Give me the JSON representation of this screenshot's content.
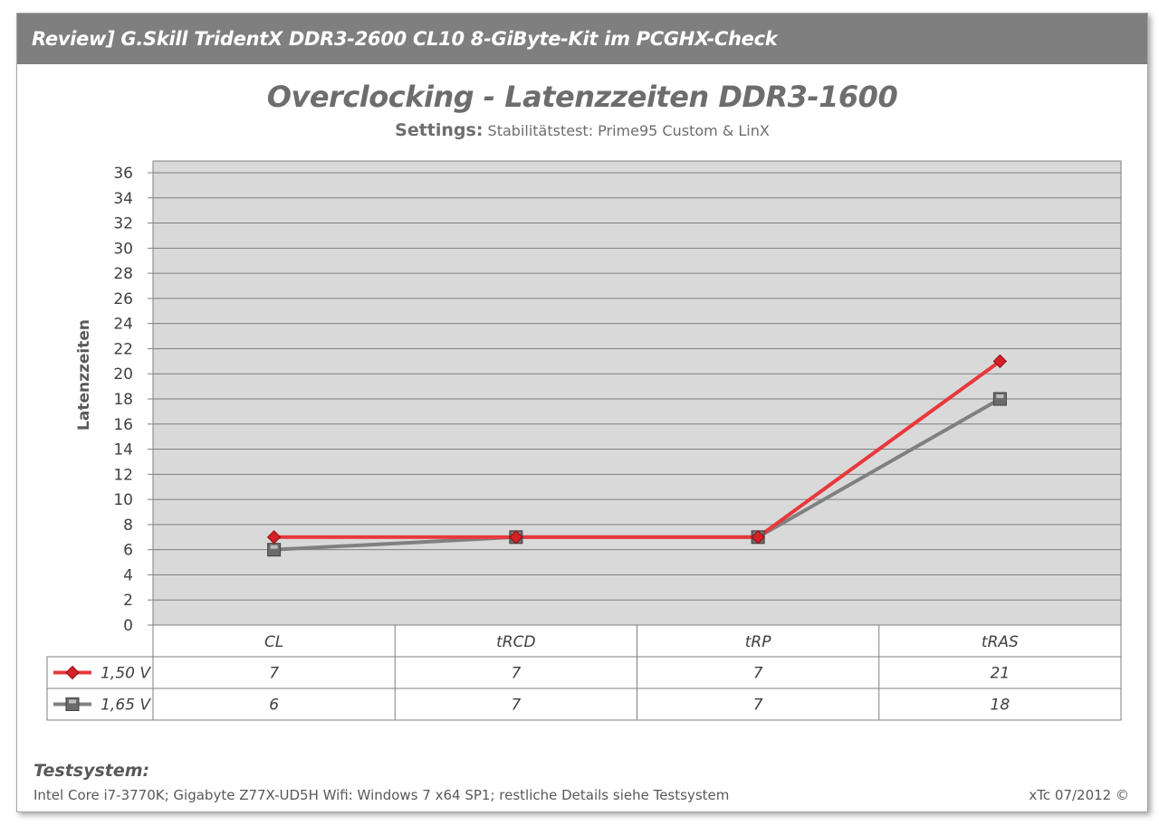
{
  "window": {
    "title": "Review] G.Skill TridentX DDR3-2600 CL10 8-GiByte-Kit im PCGHX-Check"
  },
  "chart_data": {
    "type": "line",
    "title": "Overclocking - Latenzzeiten DDR3-1600",
    "subtitle_label": "Settings:",
    "subtitle_text": "Stabilitätstest: Prime95 Custom & LinX",
    "xlabel": "",
    "ylabel": "Latenzzeiten",
    "ylim": [
      0,
      36
    ],
    "ytick_step": 2,
    "grid": true,
    "legend_placement": "data-table",
    "categories": [
      "CL",
      "tRCD",
      "tRP",
      "tRAS"
    ],
    "series": [
      {
        "name": "1,50 V",
        "values": [
          7,
          7,
          7,
          21
        ],
        "color": "#e8383c",
        "marker": "diamond"
      },
      {
        "name": "1,65 V",
        "values": [
          6,
          7,
          7,
          18
        ],
        "color": "#808080",
        "marker": "square"
      }
    ]
  },
  "footer": {
    "testsystem_label": "Testsystem:",
    "testsystem_details": "Intel Core i7-3770K; Gigabyte Z77X-UD5H Wifi: Windows 7 x64 SP1; restliche Details siehe Testsystem",
    "copyright": "xTc 07/2012 ©"
  }
}
